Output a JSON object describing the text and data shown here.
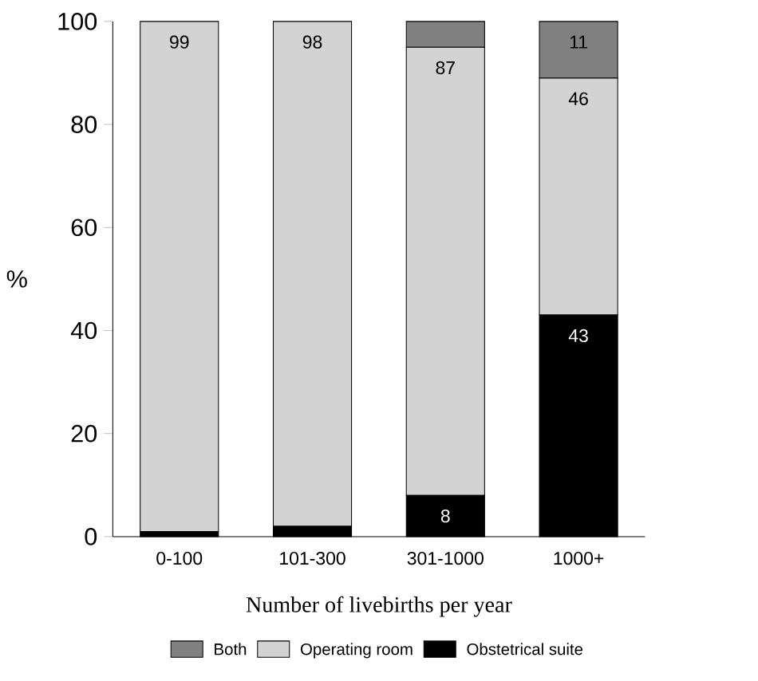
{
  "chart_data": {
    "type": "bar",
    "stacked": true,
    "xlabel": "Number of livebirths per year",
    "ylabel": "%",
    "categories": [
      "0-100",
      "101-300",
      "301-1000",
      "1000+"
    ],
    "series": [
      {
        "name": "Obstetrical suite",
        "color": "#000000",
        "values": [
          1,
          2,
          8,
          43
        ],
        "value_labels": [
          null,
          null,
          "8",
          "43"
        ]
      },
      {
        "name": "Operating room",
        "color": "#d3d3d3",
        "values": [
          99,
          98,
          87,
          46
        ],
        "value_labels": [
          "99",
          "98",
          "87",
          "46"
        ]
      },
      {
        "name": "Both",
        "color": "#808080",
        "values": [
          0,
          0,
          5,
          11
        ],
        "value_labels": [
          null,
          null,
          null,
          "11"
        ]
      }
    ],
    "ylim": [
      0,
      100
    ],
    "yticks": [
      0,
      20,
      40,
      60,
      80,
      100
    ],
    "legend": "bottom",
    "grid": false
  }
}
